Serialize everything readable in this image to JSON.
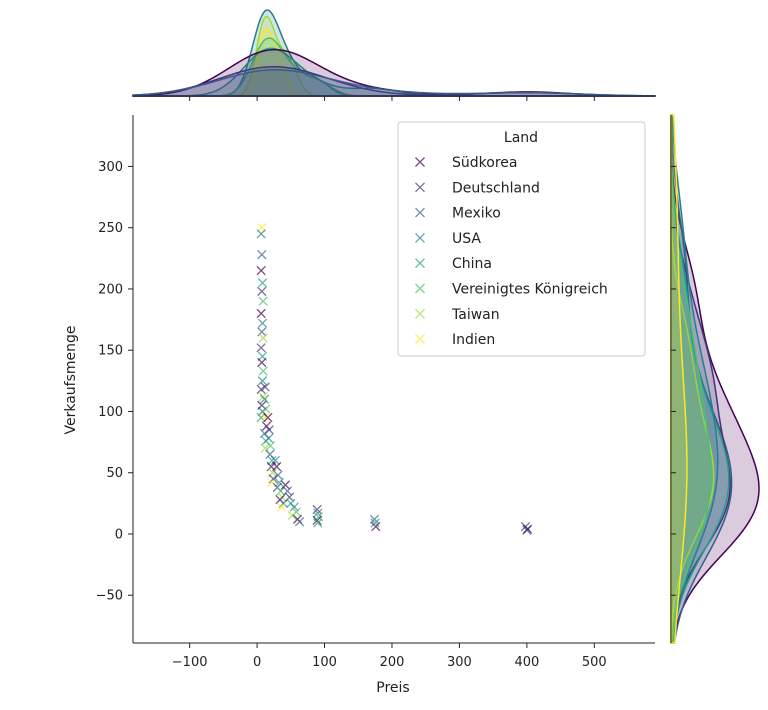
{
  "chart_data": {
    "type": "scatter",
    "xlabel": "Preis",
    "ylabel": "Verkaufsmenge",
    "xlim": [
      -184,
      590
    ],
    "ylim": [
      -89,
      342
    ],
    "xticks": [
      -100,
      0,
      100,
      200,
      300,
      400,
      500
    ],
    "yticks": [
      -50,
      0,
      50,
      100,
      150,
      200,
      250,
      300
    ],
    "marker": "x",
    "marginals": "kde (filled, per hue)",
    "legend": {
      "title": "Land",
      "placement": "upper-right",
      "entries": [
        "Südkorea",
        "Deutschland",
        "Mexiko",
        "USA",
        "China",
        "Vereinigtes Königreich",
        "Taiwan",
        "Indien"
      ]
    },
    "colors": [
      "#440154",
      "#46327e",
      "#365c8d",
      "#277f8e",
      "#1fa187",
      "#4ac16d",
      "#a0da39",
      "#fde725"
    ],
    "points": [
      [
        7,
        250,
        7
      ],
      [
        6,
        245,
        3
      ],
      [
        7,
        228,
        2
      ],
      [
        6,
        215,
        0
      ],
      [
        8,
        205,
        4
      ],
      [
        7,
        198,
        1
      ],
      [
        9,
        190,
        5
      ],
      [
        6,
        180,
        0
      ],
      [
        8,
        172,
        3
      ],
      [
        7,
        165,
        2
      ],
      [
        9,
        160,
        6
      ],
      [
        6,
        152,
        1
      ],
      [
        8,
        145,
        4
      ],
      [
        7,
        140,
        0
      ],
      [
        9,
        133,
        5
      ],
      [
        8,
        125,
        3
      ],
      [
        6,
        118,
        1
      ],
      [
        9,
        112,
        6
      ],
      [
        7,
        105,
        0
      ],
      [
        8,
        100,
        2
      ],
      [
        6,
        95,
        4
      ],
      [
        12,
        120,
        1
      ],
      [
        11,
        110,
        3
      ],
      [
        13,
        102,
        5
      ],
      [
        12,
        95,
        7
      ],
      [
        14,
        88,
        0
      ],
      [
        11,
        82,
        2
      ],
      [
        13,
        76,
        4
      ],
      [
        12,
        70,
        6
      ],
      [
        16,
        95,
        0
      ],
      [
        18,
        85,
        1
      ],
      [
        17,
        78,
        3
      ],
      [
        20,
        72,
        5
      ],
      [
        19,
        65,
        2
      ],
      [
        22,
        60,
        4
      ],
      [
        21,
        55,
        0
      ],
      [
        23,
        50,
        6
      ],
      [
        24,
        45,
        1
      ],
      [
        22,
        42,
        7
      ],
      [
        27,
        60,
        3
      ],
      [
        29,
        55,
        0
      ],
      [
        31,
        48,
        2
      ],
      [
        33,
        42,
        4
      ],
      [
        30,
        38,
        1
      ],
      [
        35,
        35,
        5
      ],
      [
        37,
        30,
        6
      ],
      [
        34,
        28,
        0
      ],
      [
        39,
        25,
        3
      ],
      [
        36,
        22,
        7
      ],
      [
        42,
        40,
        0
      ],
      [
        45,
        35,
        2
      ],
      [
        48,
        30,
        1
      ],
      [
        50,
        25,
        4
      ],
      [
        55,
        22,
        3
      ],
      [
        58,
        18,
        5
      ],
      [
        52,
        15,
        6
      ],
      [
        60,
        12,
        0
      ],
      [
        63,
        10,
        2
      ],
      [
        89,
        20,
        1
      ],
      [
        90,
        17,
        3
      ],
      [
        91,
        14,
        5
      ],
      [
        89,
        11,
        0
      ],
      [
        90,
        9,
        4
      ],
      [
        174,
        12,
        2
      ],
      [
        175,
        9,
        4
      ],
      [
        176,
        6,
        0
      ],
      [
        398,
        6,
        1
      ],
      [
        400,
        3,
        2
      ],
      [
        401,
        4,
        0
      ]
    ]
  }
}
